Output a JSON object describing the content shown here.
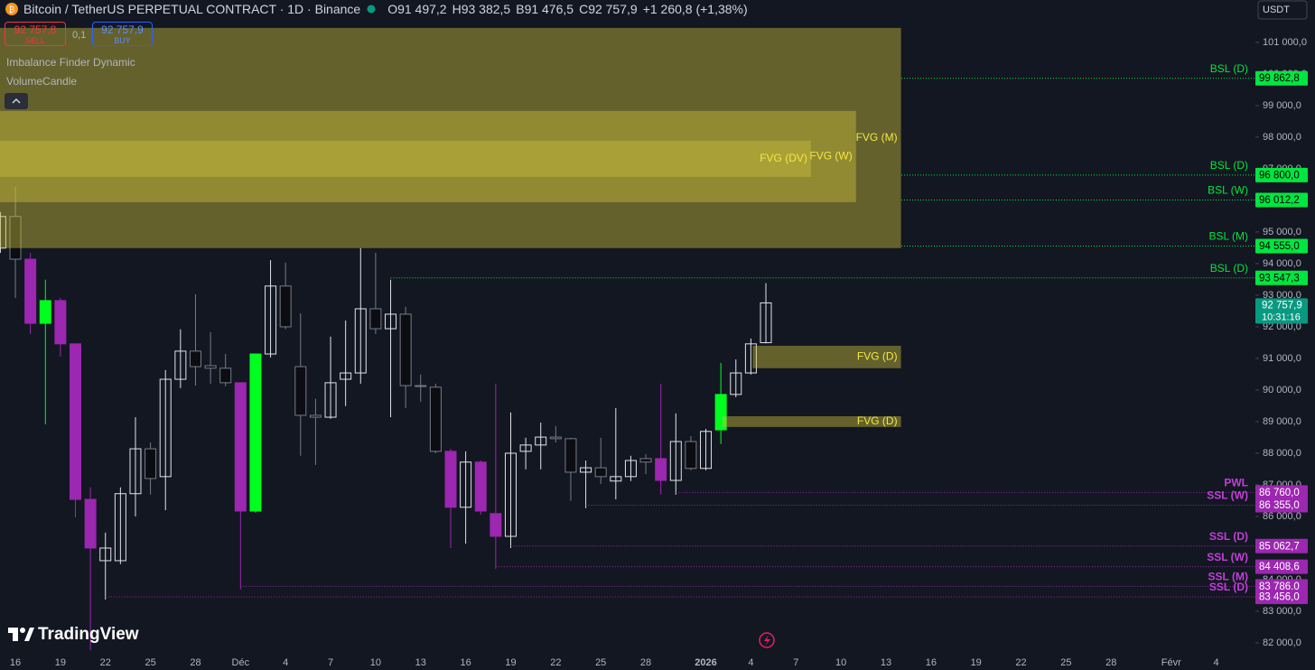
{
  "header": {
    "title": "Bitcoin / TetherUS PERPETUAL CONTRACT · 1D · Binance",
    "ohlc": [
      {
        "k": "O",
        "v": "91 497,2"
      },
      {
        "k": "H",
        "v": "93 382,5"
      },
      {
        "k": "B",
        "v": "91 476,5"
      },
      {
        "k": "C",
        "v": "92 757,9"
      }
    ],
    "change": "+1 260,8 (+1,38%)",
    "currency": "USDT"
  },
  "trade": {
    "sell_price": "92 757,8",
    "sell": "SELL",
    "qty": "0,1",
    "buy_price": "92 757,9",
    "buy": "BUY"
  },
  "indicators": [
    "Imbalance Finder Dynamic",
    "VolumeCandle"
  ],
  "brand": "TradingView",
  "chart_data": {
    "type": "candlestick",
    "categories": [
      null,
      "16",
      null,
      null,
      "19",
      null,
      null,
      "22",
      null,
      null,
      "25",
      null,
      null,
      "28",
      null,
      null,
      "Déc",
      null,
      null,
      "4",
      null,
      null,
      "7",
      null,
      null,
      "10",
      null,
      null,
      "13",
      null,
      null,
      "16",
      null,
      null,
      "19",
      null,
      null,
      "22",
      null,
      null,
      "25",
      null,
      null,
      "28",
      null,
      null,
      null,
      "2026",
      null,
      null,
      "4",
      null,
      null,
      "7",
      null,
      null,
      "10",
      null,
      null,
      "13",
      null,
      null,
      "16",
      null,
      null,
      "19",
      null,
      null,
      "22",
      null,
      null,
      "25",
      null,
      null,
      "28",
      null,
      null,
      null,
      "Févr",
      null,
      null,
      "4"
    ],
    "open": [
      94490,
      95490,
      94140,
      92110,
      92830,
      91460,
      86540,
      84600,
      84600,
      86720,
      88140,
      87260,
      90340,
      91230,
      90770,
      90690,
      90230,
      86170,
      91140,
      93290,
      90740,
      89200,
      89140,
      90340,
      90540,
      92570,
      91940,
      92400,
      90140,
      90090,
      88060,
      86290,
      87720,
      86090,
      85370,
      88060,
      88260,
      88510,
      88460,
      87400,
      87540,
      87120,
      87260,
      87830,
      87830,
      87140,
      88370,
      87520,
      88740,
      89860,
      90540,
      91497.2,
      null,
      null,
      null,
      null,
      null,
      null,
      null,
      null,
      null,
      null,
      null,
      null,
      null,
      null,
      null,
      null,
      null,
      null,
      null,
      null,
      null,
      null,
      null,
      null,
      null,
      null,
      null,
      null,
      null,
      null
    ],
    "high": [
      95630,
      96430,
      94340,
      93490,
      92910,
      91460,
      86920,
      85490,
      86920,
      89140,
      88340,
      90630,
      91920,
      93030,
      91830,
      91140,
      90230,
      91140,
      94110,
      94030,
      92430,
      89720,
      91690,
      92200,
      94490,
      94340,
      93490,
      92630,
      90490,
      90200,
      88140,
      88060,
      87770,
      90200,
      89290,
      88490,
      88970,
      88860,
      88490,
      87770,
      88490,
      89430,
      87920,
      87970,
      90200,
      89260,
      88540,
      88770,
      90860,
      90970,
      91630,
      93382.5,
      null,
      null,
      null,
      null,
      null,
      null,
      null,
      null,
      null,
      null,
      null,
      null,
      null,
      null,
      null,
      null,
      null,
      null,
      null,
      null,
      null,
      null,
      null,
      null,
      null,
      null,
      null,
      null,
      null,
      null
    ],
    "low": [
      94340,
      92910,
      91770,
      88920,
      91060,
      85970,
      81770,
      83370,
      84490,
      86000,
      86690,
      86200,
      90060,
      90140,
      90200,
      90120,
      83690,
      86120,
      91030,
      91920,
      87920,
      87630,
      89090,
      89490,
      90200,
      91770,
      89140,
      89430,
      89630,
      88000,
      85000,
      85140,
      86060,
      84340,
      85000,
      87490,
      87490,
      88340,
      86490,
      86260,
      87030,
      86540,
      87120,
      87340,
      86690,
      86690,
      87460,
      87460,
      88290,
      89770,
      90490,
      91476.5,
      null,
      null,
      null,
      null,
      null,
      null,
      null,
      null,
      null,
      null,
      null,
      null,
      null,
      null,
      null,
      null,
      null,
      null,
      null,
      null,
      null,
      null,
      null,
      null,
      null,
      null,
      null,
      null,
      null,
      null
    ],
    "close": [
      95490,
      94140,
      92110,
      92830,
      91460,
      86540,
      85000,
      85000,
      86720,
      88140,
      87200,
      90340,
      91230,
      90740,
      90690,
      90230,
      86170,
      91140,
      93290,
      92000,
      89200,
      89140,
      90230,
      90540,
      92570,
      91940,
      92400,
      90140,
      90120,
      88060,
      86290,
      87720,
      86170,
      85370,
      88000,
      88260,
      88510,
      88460,
      87400,
      87540,
      87260,
      87260,
      87770,
      87720,
      87140,
      88370,
      87520,
      88690,
      89860,
      90540,
      91460,
      92757.9,
      null,
      null,
      null,
      null,
      null,
      null,
      null,
      null,
      null,
      null,
      null,
      null,
      null,
      null,
      null,
      null,
      null,
      null,
      null,
      null,
      null,
      null,
      null,
      null,
      null,
      null,
      null,
      null,
      null,
      null
    ],
    "candle_colors": [
      null,
      null,
      "#9c27b0",
      "#00ff1e",
      "#9c27b0",
      "#9c27b0",
      "#9c27b0",
      null,
      null,
      null,
      null,
      null,
      null,
      null,
      null,
      null,
      "#9c27b0",
      "#00ff1e",
      null,
      null,
      null,
      null,
      null,
      null,
      null,
      null,
      null,
      null,
      null,
      null,
      "#9c27b0",
      null,
      "#9c27b0",
      "#9c27b0",
      null,
      null,
      null,
      null,
      null,
      null,
      null,
      null,
      null,
      null,
      "#9c27b0",
      null,
      null,
      null,
      "#00ff1e",
      null,
      null,
      null,
      null,
      null,
      null,
      null,
      null,
      null,
      null,
      null,
      null,
      null,
      null,
      null,
      null,
      null,
      null,
      null,
      null,
      null,
      null,
      null,
      null,
      null,
      null,
      null,
      null,
      null,
      null,
      null,
      null,
      null
    ],
    "up_color": "#e0e3eb",
    "down_color": "#787b86",
    "ylim": [
      81770,
      102340
    ],
    "yticks": [
      {
        "value": 82000,
        "label": "82 000,0"
      },
      {
        "value": 83000,
        "label": "83 000,0"
      },
      {
        "value": 84000,
        "label": "84 000,0"
      },
      {
        "value": 85000,
        "label": "85 000,0"
      },
      {
        "value": 86000,
        "label": "86 000,0"
      },
      {
        "value": 87000,
        "label": "87 000,0"
      },
      {
        "value": 88000,
        "label": "88 000,0"
      },
      {
        "value": 89000,
        "label": "89 000,0"
      },
      {
        "value": 90000,
        "label": "90 000,0"
      },
      {
        "value": 91000,
        "label": "91 000,0"
      },
      {
        "value": 92000,
        "label": "92 000,0"
      },
      {
        "value": 93000,
        "label": "93 000,0"
      },
      {
        "value": 94000,
        "label": "94 000,0"
      },
      {
        "value": 95000,
        "label": "95 000,0"
      },
      {
        "value": 96000,
        "label": "96 000,0"
      },
      {
        "value": 97000,
        "label": "97 000,0"
      },
      {
        "value": 98000,
        "label": "98 000,0"
      },
      {
        "value": 99000,
        "label": "99 000,0"
      },
      {
        "value": 100000,
        "label": "100 000,0"
      },
      {
        "value": 101000,
        "label": "101 000,0"
      }
    ],
    "zone_color": "#c8bc3c",
    "zone_label_color": "#f5e642",
    "zones": [
      {
        "name": "FVG (M)",
        "top": 101457,
        "bottom": 94490,
        "end": 60
      },
      {
        "name": "FVG (W)",
        "top": 98830,
        "bottom": 95943,
        "end": 57
      },
      {
        "name": "FVG (DV)",
        "top": 97886,
        "bottom": 96743,
        "end": 54
      },
      {
        "name": "FVG (D)",
        "top": 91400,
        "bottom": 90690,
        "start": 50,
        "end": 60
      },
      {
        "name": "FVG (D)",
        "top": 89170,
        "bottom": 88830,
        "start": 48,
        "end": 60
      }
    ],
    "levels": [
      {
        "name": "BSL (D)",
        "value": 99862.8,
        "label": "99 862,8",
        "start": null,
        "color": "#00e640",
        "text_color": "#000000"
      },
      {
        "name": "BSL (D)",
        "value": 96800.0,
        "label": "96 800,0",
        "start": null,
        "color": "#00e640",
        "text_color": "#000000"
      },
      {
        "name": "BSL (W)",
        "value": 96012.2,
        "label": "96 012,2",
        "start": null,
        "color": "#00e640",
        "text_color": "#000000"
      },
      {
        "name": "BSL (M)",
        "value": 94555.0,
        "label": "94 555,0",
        "start": null,
        "color": "#00e640",
        "text_color": "#000000"
      },
      {
        "name": "BSL (D)",
        "value": 93547.3,
        "label": "93 547,3",
        "start": 26,
        "color": "#00e640",
        "text_color": "#000000"
      },
      {
        "name": "PWL",
        "value": 86760.0,
        "label": "86 760,0",
        "start": 45,
        "color": "#9c27b0",
        "text_color": "#ffffff"
      },
      {
        "name": "SSL (W)",
        "value": 86355.0,
        "label": "86 355,0",
        "start": 39,
        "color": "#9c27b0",
        "text_color": "#ffffff"
      },
      {
        "name": "SSL (D)",
        "value": 85062.7,
        "label": "85 062,7",
        "start": 34,
        "color": "#9c27b0",
        "text_color": "#ffffff"
      },
      {
        "name": "SSL (W)",
        "value": 84408.6,
        "label": "84 408,6",
        "start": 33,
        "color": "#9c27b0",
        "text_color": "#ffffff"
      },
      {
        "name": "SSL (M)",
        "value": 83786.0,
        "label": "83 786,0",
        "start": 16,
        "color": "#9c27b0",
        "text_color": "#ffffff"
      },
      {
        "name": "SSL (D)",
        "value": 83456.0,
        "label": "83 456,0",
        "start": 7,
        "color": "#9c27b0",
        "text_color": "#ffffff"
      }
    ],
    "last_price": {
      "value": 92757.9,
      "label": "92 757,9",
      "countdown": "10:31:16",
      "color": "#089981"
    }
  }
}
